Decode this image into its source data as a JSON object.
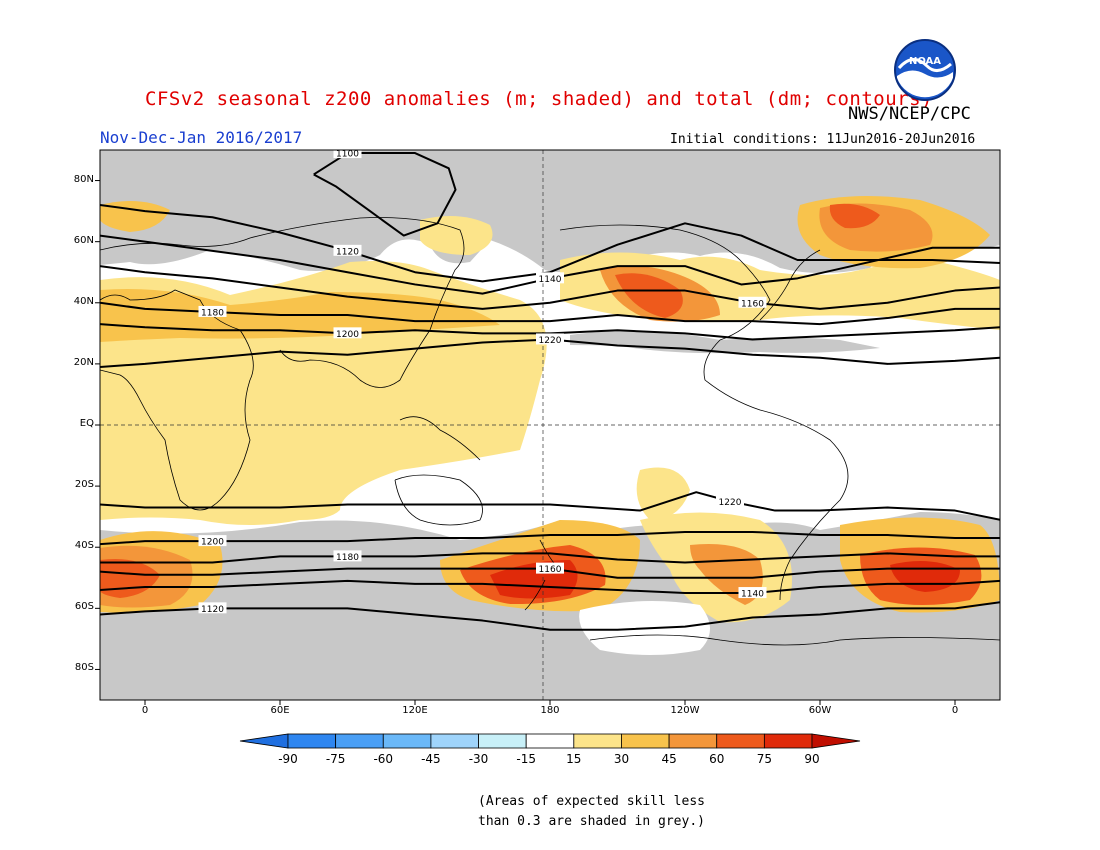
{
  "title": "CFSv2 seasonal z200 anomalies (m; shaded) and total (dm; contours)",
  "agency": "NWS/NCEP/CPC",
  "logo_text": "NOAA",
  "period": "Nov-Dec-Jan 2016/2017",
  "initial_conditions": "Initial conditions: 11Jun2016-20Jun2016",
  "lat_labels": [
    {
      "text": "80N",
      "lat": 80
    },
    {
      "text": "60N",
      "lat": 60
    },
    {
      "text": "40N",
      "lat": 40
    },
    {
      "text": "20N",
      "lat": 20
    },
    {
      "text": "EQ",
      "lat": 0
    },
    {
      "text": "20S",
      "lat": -20
    },
    {
      "text": "40S",
      "lat": -40
    },
    {
      "text": "60S",
      "lat": -60
    },
    {
      "text": "80S",
      "lat": -80
    }
  ],
  "lon_labels": [
    {
      "text": "0",
      "lon": 0
    },
    {
      "text": "60E",
      "lon": 60
    },
    {
      "text": "120E",
      "lon": 120
    },
    {
      "text": "180",
      "lon": 180
    },
    {
      "text": "120W",
      "lon": 240
    },
    {
      "text": "60W",
      "lon": 300
    },
    {
      "text": "0",
      "lon": 360
    }
  ],
  "contours": [
    {
      "label": "1100",
      "points": [
        [
          75,
          82
        ],
        [
          90,
          89
        ],
        [
          120,
          89
        ],
        [
          135,
          84
        ],
        [
          138,
          77
        ],
        [
          130,
          66
        ],
        [
          115,
          62
        ],
        [
          100,
          70
        ],
        [
          85,
          78
        ],
        [
          75,
          82
        ]
      ]
    },
    {
      "label": "1120",
      "points": [
        [
          -20,
          72
        ],
        [
          0,
          70
        ],
        [
          30,
          68
        ],
        [
          60,
          63
        ],
        [
          90,
          57
        ],
        [
          120,
          50
        ],
        [
          150,
          47
        ],
        [
          180,
          50
        ],
        [
          210,
          59
        ],
        [
          240,
          66
        ],
        [
          265,
          62
        ],
        [
          290,
          54
        ],
        [
          320,
          54
        ],
        [
          350,
          54
        ],
        [
          380,
          53
        ]
      ]
    },
    {
      "label": "1140",
      "points": [
        [
          -20,
          62
        ],
        [
          0,
          60
        ],
        [
          30,
          57
        ],
        [
          60,
          54
        ],
        [
          90,
          50
        ],
        [
          120,
          46
        ],
        [
          150,
          43
        ],
        [
          180,
          48
        ],
        [
          210,
          52
        ],
        [
          240,
          52
        ],
        [
          265,
          46
        ],
        [
          290,
          48
        ],
        [
          320,
          53
        ],
        [
          350,
          58
        ],
        [
          380,
          58
        ]
      ]
    },
    {
      "label": "1160",
      "points": [
        [
          -20,
          52
        ],
        [
          0,
          50
        ],
        [
          30,
          48
        ],
        [
          60,
          45
        ],
        [
          90,
          42
        ],
        [
          120,
          40
        ],
        [
          150,
          38
        ],
        [
          180,
          40
        ],
        [
          210,
          44
        ],
        [
          240,
          44
        ],
        [
          270,
          40
        ],
        [
          300,
          38
        ],
        [
          330,
          40
        ],
        [
          360,
          44
        ],
        [
          380,
          45
        ]
      ]
    },
    {
      "label": "1180",
      "points": [
        [
          -20,
          40
        ],
        [
          0,
          38
        ],
        [
          30,
          37
        ],
        [
          60,
          36
        ],
        [
          90,
          36
        ],
        [
          120,
          34
        ],
        [
          150,
          34
        ],
        [
          180,
          34
        ],
        [
          210,
          36
        ],
        [
          240,
          34
        ],
        [
          270,
          34
        ],
        [
          300,
          33
        ],
        [
          330,
          35
        ],
        [
          360,
          38
        ],
        [
          380,
          38
        ]
      ]
    },
    {
      "label": "1200",
      "points": [
        [
          -20,
          33
        ],
        [
          0,
          32
        ],
        [
          30,
          31
        ],
        [
          60,
          31
        ],
        [
          90,
          30
        ],
        [
          120,
          31
        ],
        [
          150,
          30
        ],
        [
          180,
          30
        ],
        [
          210,
          31
        ],
        [
          240,
          30
        ],
        [
          270,
          28
        ],
        [
          300,
          29
        ],
        [
          330,
          30
        ],
        [
          360,
          31
        ],
        [
          380,
          32
        ]
      ]
    },
    {
      "label": "1220",
      "points": [
        [
          -20,
          19
        ],
        [
          0,
          20
        ],
        [
          30,
          22
        ],
        [
          60,
          24
        ],
        [
          90,
          23
        ],
        [
          120,
          25
        ],
        [
          150,
          27
        ],
        [
          180,
          28
        ],
        [
          210,
          26
        ],
        [
          240,
          25
        ],
        [
          270,
          23
        ],
        [
          300,
          22
        ],
        [
          330,
          20
        ],
        [
          360,
          21
        ],
        [
          380,
          22
        ]
      ]
    },
    {
      "label": "1220",
      "points": [
        [
          -20,
          -26
        ],
        [
          0,
          -27
        ],
        [
          30,
          -27
        ],
        [
          60,
          -27
        ],
        [
          90,
          -26
        ],
        [
          120,
          -26
        ],
        [
          150,
          -26
        ],
        [
          180,
          -26
        ],
        [
          200,
          -27
        ],
        [
          220,
          -28
        ],
        [
          245,
          -22
        ],
        [
          260,
          -25
        ],
        [
          280,
          -28
        ],
        [
          300,
          -28
        ],
        [
          330,
          -27
        ],
        [
          360,
          -28
        ],
        [
          380,
          -31
        ]
      ]
    },
    {
      "label": "1200",
      "points": [
        [
          -20,
          -39
        ],
        [
          0,
          -38
        ],
        [
          30,
          -38
        ],
        [
          60,
          -38
        ],
        [
          90,
          -38
        ],
        [
          120,
          -37
        ],
        [
          150,
          -37
        ],
        [
          180,
          -36
        ],
        [
          210,
          -36
        ],
        [
          240,
          -35
        ],
        [
          270,
          -35
        ],
        [
          300,
          -36
        ],
        [
          330,
          -36
        ],
        [
          360,
          -37
        ],
        [
          380,
          -37
        ]
      ]
    },
    {
      "label": "1180",
      "points": [
        [
          -20,
          -45
        ],
        [
          0,
          -45
        ],
        [
          30,
          -45
        ],
        [
          60,
          -43
        ],
        [
          90,
          -43
        ],
        [
          120,
          -43
        ],
        [
          150,
          -42
        ],
        [
          180,
          -42
        ],
        [
          210,
          -44
        ],
        [
          240,
          -45
        ],
        [
          270,
          -44
        ],
        [
          300,
          -43
        ],
        [
          330,
          -42
        ],
        [
          360,
          -43
        ],
        [
          380,
          -43
        ]
      ]
    },
    {
      "label": "1160",
      "points": [
        [
          -20,
          -48
        ],
        [
          0,
          -49
        ],
        [
          30,
          -49
        ],
        [
          60,
          -48
        ],
        [
          90,
          -47
        ],
        [
          120,
          -47
        ],
        [
          150,
          -47
        ],
        [
          180,
          -47
        ],
        [
          210,
          -50
        ],
        [
          240,
          -50
        ],
        [
          270,
          -50
        ],
        [
          300,
          -48
        ],
        [
          330,
          -47
        ],
        [
          360,
          -47
        ],
        [
          380,
          -47
        ]
      ]
    },
    {
      "label": "1140",
      "points": [
        [
          -20,
          -54
        ],
        [
          0,
          -53
        ],
        [
          30,
          -53
        ],
        [
          60,
          -52
        ],
        [
          90,
          -51
        ],
        [
          120,
          -52
        ],
        [
          150,
          -52
        ],
        [
          180,
          -53
        ],
        [
          210,
          -54
        ],
        [
          240,
          -55
        ],
        [
          270,
          -55
        ],
        [
          300,
          -53
        ],
        [
          330,
          -52
        ],
        [
          360,
          -52
        ],
        [
          380,
          -51
        ]
      ]
    },
    {
      "label": "1120",
      "points": [
        [
          -20,
          -62
        ],
        [
          0,
          -61
        ],
        [
          30,
          -60
        ],
        [
          60,
          -60
        ],
        [
          90,
          -60
        ],
        [
          120,
          -62
        ],
        [
          150,
          -64
        ],
        [
          180,
          -67
        ],
        [
          210,
          -67
        ],
        [
          240,
          -66
        ],
        [
          270,
          -63
        ],
        [
          300,
          -62
        ],
        [
          330,
          -60
        ],
        [
          360,
          -60
        ],
        [
          380,
          -58
        ]
      ]
    }
  ],
  "colorbar": {
    "ticks": [
      "-90",
      "-75",
      "-60",
      "-45",
      "-30",
      "-15",
      "15",
      "30",
      "45",
      "60",
      "75",
      "90"
    ],
    "colors": [
      "#1f6fe0",
      "#2e86f0",
      "#4a9ff5",
      "#6ab8f8",
      "#9fd4fb",
      "#c8f0f8",
      "#ffffff",
      "#fce48a",
      "#f8c34c",
      "#f3963a",
      "#ee5a1c",
      "#e02a0a",
      "#c00e00"
    ]
  },
  "note_lines": [
    "(Areas of expected skill less",
    "than 0.3 are shaded in grey.)"
  ]
}
